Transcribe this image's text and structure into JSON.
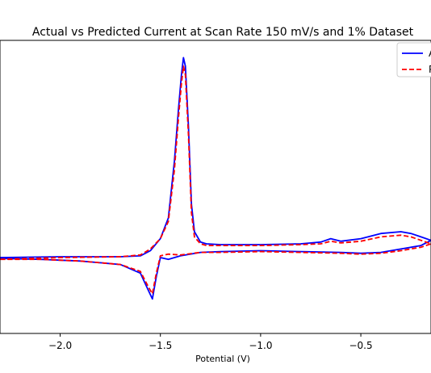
{
  "chart_data": {
    "type": "line",
    "title": "Actual vs Predicted Current at Scan Rate 150 mV/s and 1% Dataset",
    "xlabel": "Potential (V)",
    "ylabel": "",
    "xlim": [
      -2.3,
      -0.15
    ],
    "ylim": [
      -0.45,
      1.25
    ],
    "x_ticks": [
      {
        "value": -2.0,
        "label": "−2.0"
      },
      {
        "value": -1.5,
        "label": "−1.5"
      },
      {
        "value": -1.0,
        "label": "−1.0"
      },
      {
        "value": -0.5,
        "label": "−0.5"
      }
    ],
    "grid": false,
    "legend_position": "top-right",
    "colors": {
      "actual": "#0000ff",
      "predicted": "#ff0000"
    },
    "series": [
      {
        "name": "A",
        "style": "solid",
        "x": [
          -2.3,
          -2.0,
          -1.7,
          -1.6,
          -1.55,
          -1.5,
          -1.46,
          -1.43,
          -1.41,
          -1.395,
          -1.385,
          -1.375,
          -1.36,
          -1.345,
          -1.33,
          -1.3,
          -1.27,
          -1.2,
          -1.0,
          -0.8,
          -0.7,
          -0.65,
          -0.6,
          -0.5,
          -0.4,
          -0.3,
          -0.25,
          -0.2,
          -0.15,
          -0.2,
          -0.3,
          -0.4,
          -0.5,
          -0.6,
          -0.8,
          -1.0,
          -1.2,
          -1.3,
          -1.4,
          -1.46,
          -1.5,
          -1.52,
          -1.54,
          -1.56,
          -1.6,
          -1.7,
          -1.9,
          -2.1,
          -2.3
        ],
        "y": [
          -0.01,
          -0.005,
          -0.005,
          0.0,
          0.03,
          0.1,
          0.22,
          0.55,
          0.85,
          1.05,
          1.15,
          1.1,
          0.75,
          0.3,
          0.14,
          0.08,
          0.07,
          0.065,
          0.065,
          0.07,
          0.08,
          0.1,
          0.085,
          0.1,
          0.13,
          0.14,
          0.13,
          0.11,
          0.09,
          0.06,
          0.04,
          0.02,
          0.015,
          0.02,
          0.025,
          0.03,
          0.025,
          0.02,
          0.0,
          -0.02,
          -0.01,
          -0.12,
          -0.25,
          -0.2,
          -0.1,
          -0.05,
          -0.03,
          -0.02,
          -0.015
        ]
      },
      {
        "name": "P",
        "style": "dashed",
        "x": [
          -2.3,
          -2.0,
          -1.7,
          -1.6,
          -1.55,
          -1.5,
          -1.46,
          -1.43,
          -1.41,
          -1.395,
          -1.385,
          -1.375,
          -1.36,
          -1.345,
          -1.33,
          -1.3,
          -1.27,
          -1.2,
          -1.0,
          -0.8,
          -0.7,
          -0.65,
          -0.6,
          -0.5,
          -0.4,
          -0.3,
          -0.25,
          -0.2,
          -0.15,
          -0.2,
          -0.3,
          -0.4,
          -0.5,
          -0.6,
          -0.8,
          -1.0,
          -1.2,
          -1.3,
          -1.4,
          -1.46,
          -1.5,
          -1.52,
          -1.54,
          -1.56,
          -1.6,
          -1.7,
          -1.9,
          -2.1,
          -2.3
        ],
        "y": [
          -0.02,
          -0.01,
          -0.005,
          0.005,
          0.04,
          0.1,
          0.2,
          0.5,
          0.8,
          1.0,
          1.1,
          1.05,
          0.7,
          0.25,
          0.11,
          0.07,
          0.06,
          0.06,
          0.06,
          0.065,
          0.07,
          0.085,
          0.075,
          0.085,
          0.11,
          0.12,
          0.11,
          0.09,
          0.07,
          0.05,
          0.03,
          0.015,
          0.01,
          0.015,
          0.02,
          0.025,
          0.02,
          0.02,
          0.005,
          0.01,
          0.0,
          -0.1,
          -0.22,
          -0.18,
          -0.09,
          -0.05,
          -0.03,
          -0.02,
          -0.02
        ]
      }
    ]
  }
}
